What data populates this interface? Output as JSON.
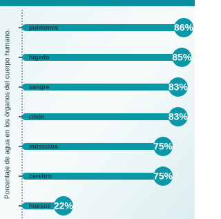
{
  "chart_data": {
    "type": "bar",
    "orientation": "horizontal",
    "y_label": "Porcentaje de agua en los órganos del cuerpo humano.",
    "categories": [
      "pulmones",
      "hígado",
      "sangre",
      "riñón",
      "músculos",
      "cerebro",
      "huesos"
    ],
    "values": [
      86,
      85,
      83,
      83,
      75,
      75,
      22
    ],
    "value_labels": [
      "86%",
      "85%",
      "83%",
      "83%",
      "75%",
      "75%",
      "22%"
    ],
    "color": "#0a97a6"
  }
}
